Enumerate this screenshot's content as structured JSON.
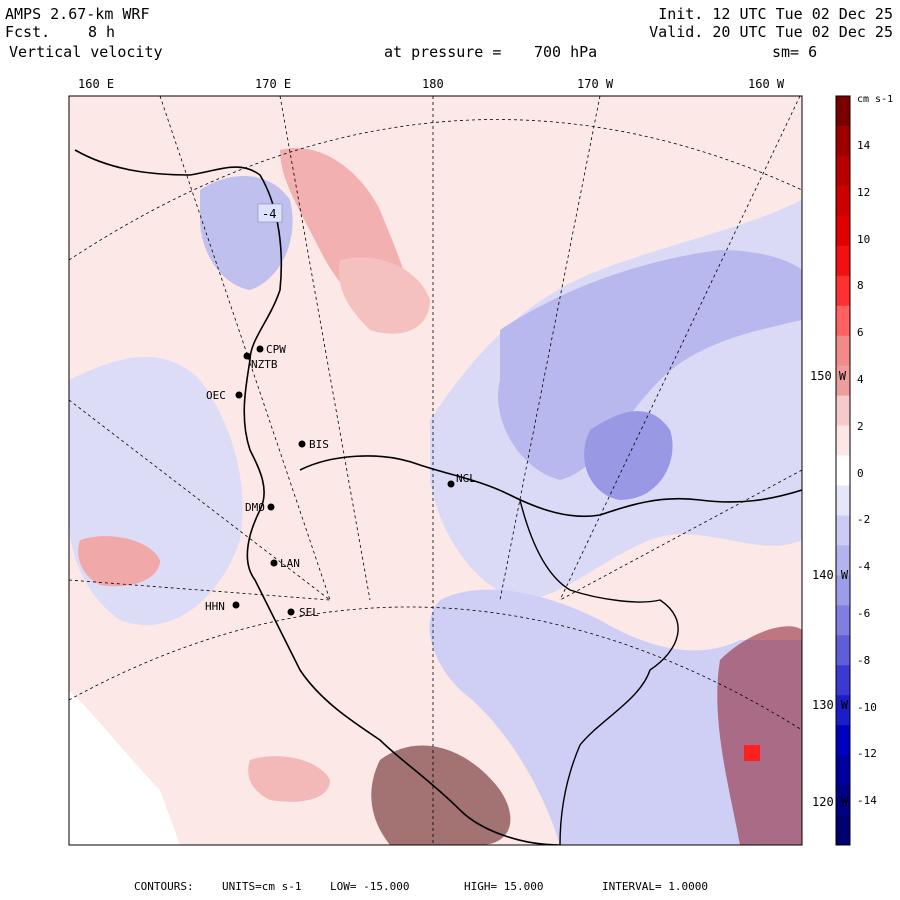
{
  "header": {
    "model": "AMPS 2.67-km WRF",
    "fcst_label": "Fcst.",
    "fcst_value": "8 h",
    "field": "Vertical velocity",
    "level_label": "at pressure =",
    "level_value": "700 hPa",
    "init": "Init. 12 UTC Tue 02 Dec 25",
    "valid": "Valid. 20 UTC Tue 02 Dec 25",
    "smoothing": "sm= 6"
  },
  "longitude_labels": [
    "160 E",
    "170 E",
    "180",
    "170 W",
    "160 W"
  ],
  "latitude_labels": [
    "150 W",
    "140 W",
    "130 W",
    "120 W"
  ],
  "stations": [
    "CPW",
    "NZTB",
    "OEC",
    "BIS",
    "NGL",
    "DMO",
    "LAN",
    "HHN",
    "SEL"
  ],
  "contour_label": "-4",
  "colorbar": {
    "units": "cm s-1",
    "ticks": [
      "14",
      "12",
      "10",
      "8",
      "6",
      "4",
      "2",
      "0",
      "-2",
      "-4",
      "-6",
      "-8",
      "-10",
      "-12",
      "-14"
    ],
    "colors": [
      "#7a0000",
      "#9e0000",
      "#b80000",
      "#cc0000",
      "#e00000",
      "#f21010",
      "#ff3030",
      "#ff6060",
      "#f28a8a",
      "#ee9d9d",
      "#f7caca",
      "#fde6e6",
      "#ffffff",
      "#e6e6fb",
      "#cbcbf5",
      "#b3b3ef",
      "#9c9ce9",
      "#7f7fe0",
      "#5e5ed8",
      "#3a3ad0",
      "#1c1cc8",
      "#0000c0",
      "#0000a0",
      "#000086",
      "#000070"
    ]
  },
  "footer": {
    "contours_label": "CONTOURS:",
    "units_text": "UNITS=cm s-1",
    "low_text": "LOW= -15.000",
    "high_text": "HIGH= 15.000",
    "interval_text": "INTERVAL= 1.0000"
  }
}
